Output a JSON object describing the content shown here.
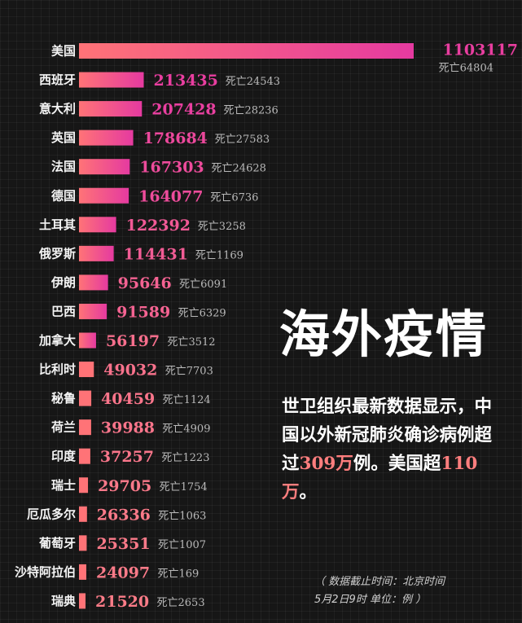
{
  "chart_data": {
    "type": "bar",
    "orientation": "horizontal",
    "categories": [
      "美国",
      "西班牙",
      "意大利",
      "英国",
      "法国",
      "德国",
      "土耳其",
      "俄罗斯",
      "伊朗",
      "巴西",
      "加拿大",
      "比利时",
      "秘鲁",
      "荷兰",
      "印度",
      "瑞士",
      "厄瓜多尔",
      "葡萄牙",
      "沙特阿拉伯",
      "瑞典"
    ],
    "series": [
      {
        "values": [
          1103117,
          213435,
          207428,
          178684,
          167303,
          164077,
          122392,
          114431,
          95646,
          91589,
          56197,
          49032,
          40459,
          39988,
          37257,
          29705,
          26336,
          25351,
          24097,
          21520
        ]
      }
    ],
    "deaths": [
      64804,
      24543,
      28236,
      27583,
      24628,
      6736,
      3258,
      1169,
      6091,
      6329,
      3512,
      7703,
      1124,
      4909,
      1223,
      1754,
      1063,
      1007,
      169,
      2653
    ],
    "death_prefix": "死亡",
    "title": "海外疫情",
    "annotations": [
      "世卫组织最新数据显示，中国以外新冠肺炎确诊病例超过309万例。美国超110万。"
    ]
  },
  "colors": {
    "bar_high": "#e53aa0",
    "bar_low": "#ff7377",
    "value_high": "#e93ea0",
    "value_low": "#ff8585",
    "background": "#161616"
  },
  "headline": "海外疫情",
  "description": {
    "part1": "世卫组织最新数据显示，中国以外新冠肺炎确诊病例超过",
    "highlight1": "309万",
    "part2": "例。美国超",
    "highlight2": "110万",
    "part3": "。"
  },
  "note": {
    "line1": "（ 数据截止时间：北京时间",
    "line2": "5月2日9时  单位：例 ）"
  }
}
